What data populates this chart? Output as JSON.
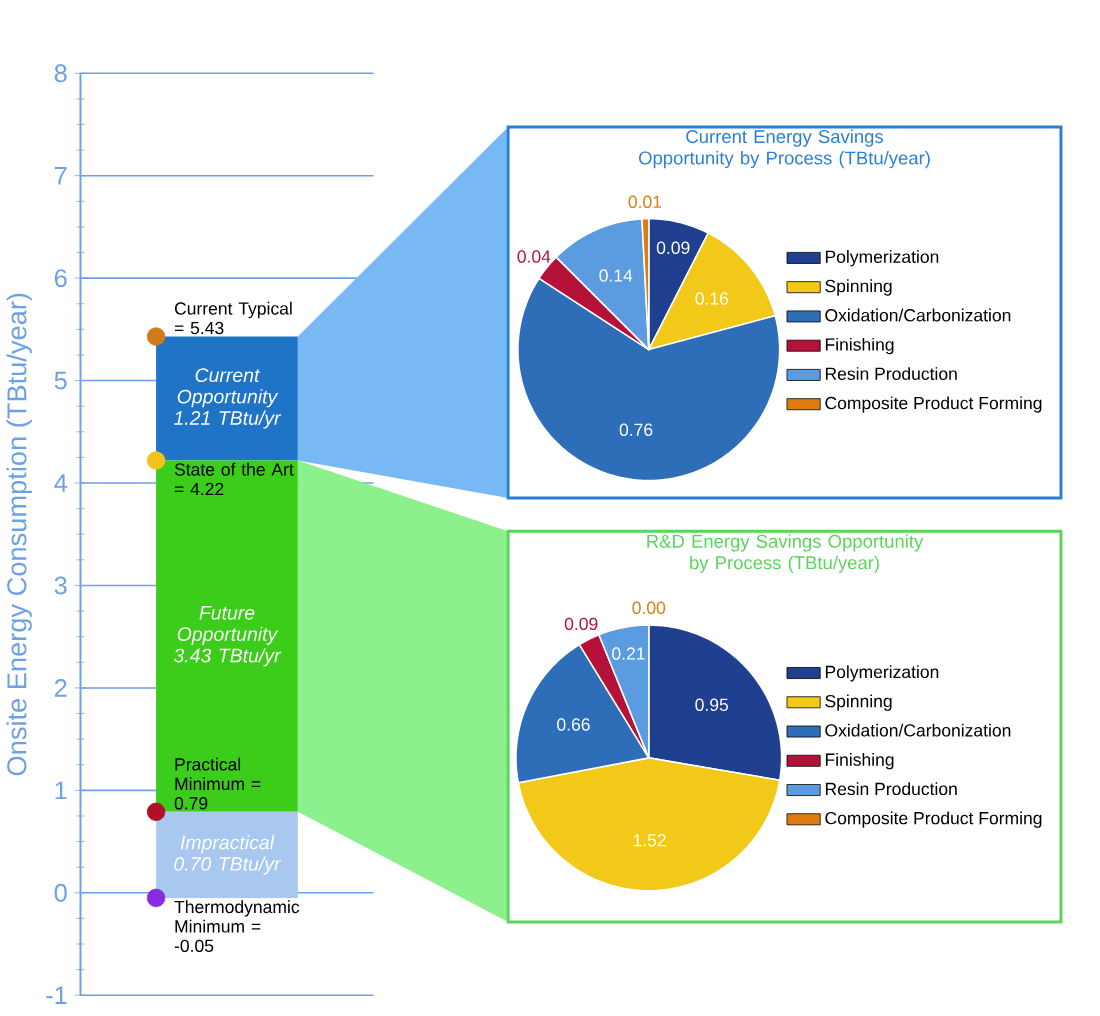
{
  "chart_data": [
    {
      "type": "scatter",
      "ylabel": "Onsite Energy Consumption (TBtu/year)",
      "ylim": [
        -1,
        8
      ],
      "yticks": [
        -1,
        0,
        1,
        2,
        3,
        4,
        5,
        6,
        7,
        8
      ],
      "grid": "y",
      "categories": [
        null
      ],
      "series": [
        {
          "color": "#d07a1c",
          "values": [
            5.43
          ]
        },
        {
          "color": "#f0c419",
          "values": [
            4.22
          ]
        },
        {
          "color": "#b0102a",
          "values": [
            0.79
          ]
        },
        {
          "color": "#8a2be2",
          "values": [
            -0.05
          ]
        }
      ],
      "bands": [
        {
          "axis": "y",
          "from": 4.22,
          "to": 5.43,
          "label": "Current Opportunity 1.21 TBtu/yr",
          "color": "#1f74c8"
        },
        {
          "axis": "y",
          "from": 0.79,
          "to": 4.22,
          "label": "Future Opportunity 3.43 TBtu/yr",
          "color": "#3ccc1a"
        },
        {
          "axis": "y",
          "from": -0.05,
          "to": 0.79,
          "label": "Impractical 0.70 TBtu/yr",
          "color": "#a8c8f0"
        }
      ],
      "annotations": [
        {
          "text": "Current Typical = 5.43",
          "y": 5.43
        },
        {
          "text": "State of the Art = 4.22",
          "y": 4.22
        },
        {
          "text": "Practical Minimum = 0.79",
          "y": 0.79
        },
        {
          "text": "Thermodynamic Minimum = -0.05",
          "y": -0.05
        }
      ]
    },
    {
      "type": "pie",
      "title": "Current Energy Savings Opportunity by Process (TBtu/year)",
      "legend": "right",
      "categories": [
        "Polymerization",
        "Spinning",
        "Oxidation/Carbonization",
        "Finishing",
        "Resin Production",
        "Composite Product Forming"
      ],
      "values": [
        0.09,
        0.16,
        0.76,
        0.04,
        0.14,
        0.01
      ],
      "value_labels": [
        "0.09",
        "0.16",
        "0.76",
        "0.04",
        "0.14",
        "0.01"
      ],
      "colors": [
        "#1f3f8f",
        "#f2c919",
        "#2e6db8",
        "#b5123a",
        "#5b9be0",
        "#e07b10"
      ]
    },
    {
      "type": "pie",
      "title": "R&D Energy Savings Opportunity by Process (TBtu/year)",
      "legend": "right",
      "categories": [
        "Polymerization",
        "Spinning",
        "Oxidation/Carbonization",
        "Finishing",
        "Resin Production",
        "Composite Product Forming"
      ],
      "values": [
        0.95,
        1.52,
        0.66,
        0.09,
        0.21,
        0.0
      ],
      "value_labels": [
        "0.95",
        "1.52",
        "0.66",
        "0.09",
        "0.21",
        "0.00"
      ],
      "colors": [
        "#1f3f8f",
        "#f2c919",
        "#2e6db8",
        "#b5123a",
        "#5b9be0",
        "#e07b10"
      ]
    }
  ]
}
